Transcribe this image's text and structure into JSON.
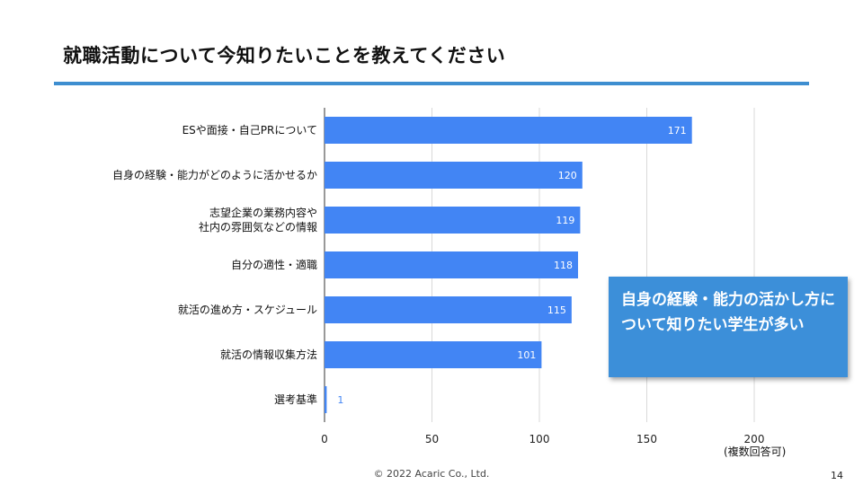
{
  "slide": {
    "title": "就職活動について今知りたいことを教えてください",
    "callout": "自身の経験・能力の活かし方について知りたい学生が多い",
    "note": "(複数回答可)",
    "footer": "© 2022 Acaric Co., Ltd.",
    "page_number": "14"
  },
  "colors": {
    "bar": "#4285f4",
    "accent": "#3e8ed0",
    "callout_bg": "#3c8fd9",
    "grid": "#d9d9d9"
  },
  "chart_data": {
    "type": "bar",
    "orientation": "horizontal",
    "categories": [
      [
        "ESや面接・自己PRについて"
      ],
      [
        "自身の経験・能力がどのように活かせるか"
      ],
      [
        "志望企業の業務内容や",
        "社内の雰囲気などの情報"
      ],
      [
        "自分の適性・適職"
      ],
      [
        "就活の進め方・スケジュール"
      ],
      [
        "就活の情報収集方法"
      ],
      [
        "選考基準"
      ]
    ],
    "values": [
      171,
      120,
      119,
      118,
      115,
      101,
      1
    ],
    "xlim": [
      0,
      200
    ],
    "xticks": [
      0,
      50,
      100,
      150,
      200
    ],
    "grid": true,
    "data_labels": true
  }
}
